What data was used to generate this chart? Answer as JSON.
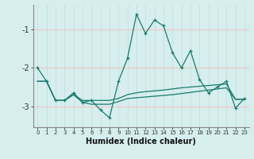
{
  "xlabel": "Humidex (Indice chaleur)",
  "bg_color": "#d6eeee",
  "grid_color_major": "#f0c8c8",
  "grid_color_minor": "#c8e0e0",
  "line_color": "#1a7a6e",
  "x_values": [
    0,
    1,
    2,
    3,
    4,
    5,
    6,
    7,
    8,
    9,
    10,
    11,
    12,
    13,
    14,
    15,
    16,
    17,
    18,
    19,
    20,
    21,
    22,
    23
  ],
  "series1": [
    -2.0,
    -2.35,
    -2.85,
    -2.85,
    -2.65,
    -2.9,
    -2.85,
    -3.1,
    -3.3,
    -2.35,
    -1.75,
    -0.6,
    -1.1,
    -0.75,
    -0.9,
    -1.6,
    -2.0,
    -1.55,
    -2.3,
    -2.65,
    -2.5,
    -2.35,
    -3.05,
    -2.8
  ],
  "series2": [
    -2.35,
    -2.35,
    -2.85,
    -2.85,
    -2.7,
    -2.85,
    -2.85,
    -2.85,
    -2.85,
    -2.8,
    -2.7,
    -2.65,
    -2.62,
    -2.6,
    -2.58,
    -2.55,
    -2.52,
    -2.5,
    -2.48,
    -2.46,
    -2.44,
    -2.42,
    -2.82,
    -2.82
  ],
  "series3": [
    -2.35,
    -2.35,
    -2.85,
    -2.85,
    -2.7,
    -2.9,
    -2.95,
    -2.95,
    -2.95,
    -2.88,
    -2.8,
    -2.78,
    -2.76,
    -2.74,
    -2.72,
    -2.7,
    -2.67,
    -2.64,
    -2.61,
    -2.58,
    -2.55,
    -2.52,
    -2.82,
    -2.82
  ],
  "ylim": [
    -3.55,
    -0.35
  ],
  "yticks": [
    -3,
    -2,
    -1
  ],
  "xlim": [
    -0.5,
    23.5
  ],
  "figsize": [
    3.2,
    2.0
  ],
  "dpi": 100
}
